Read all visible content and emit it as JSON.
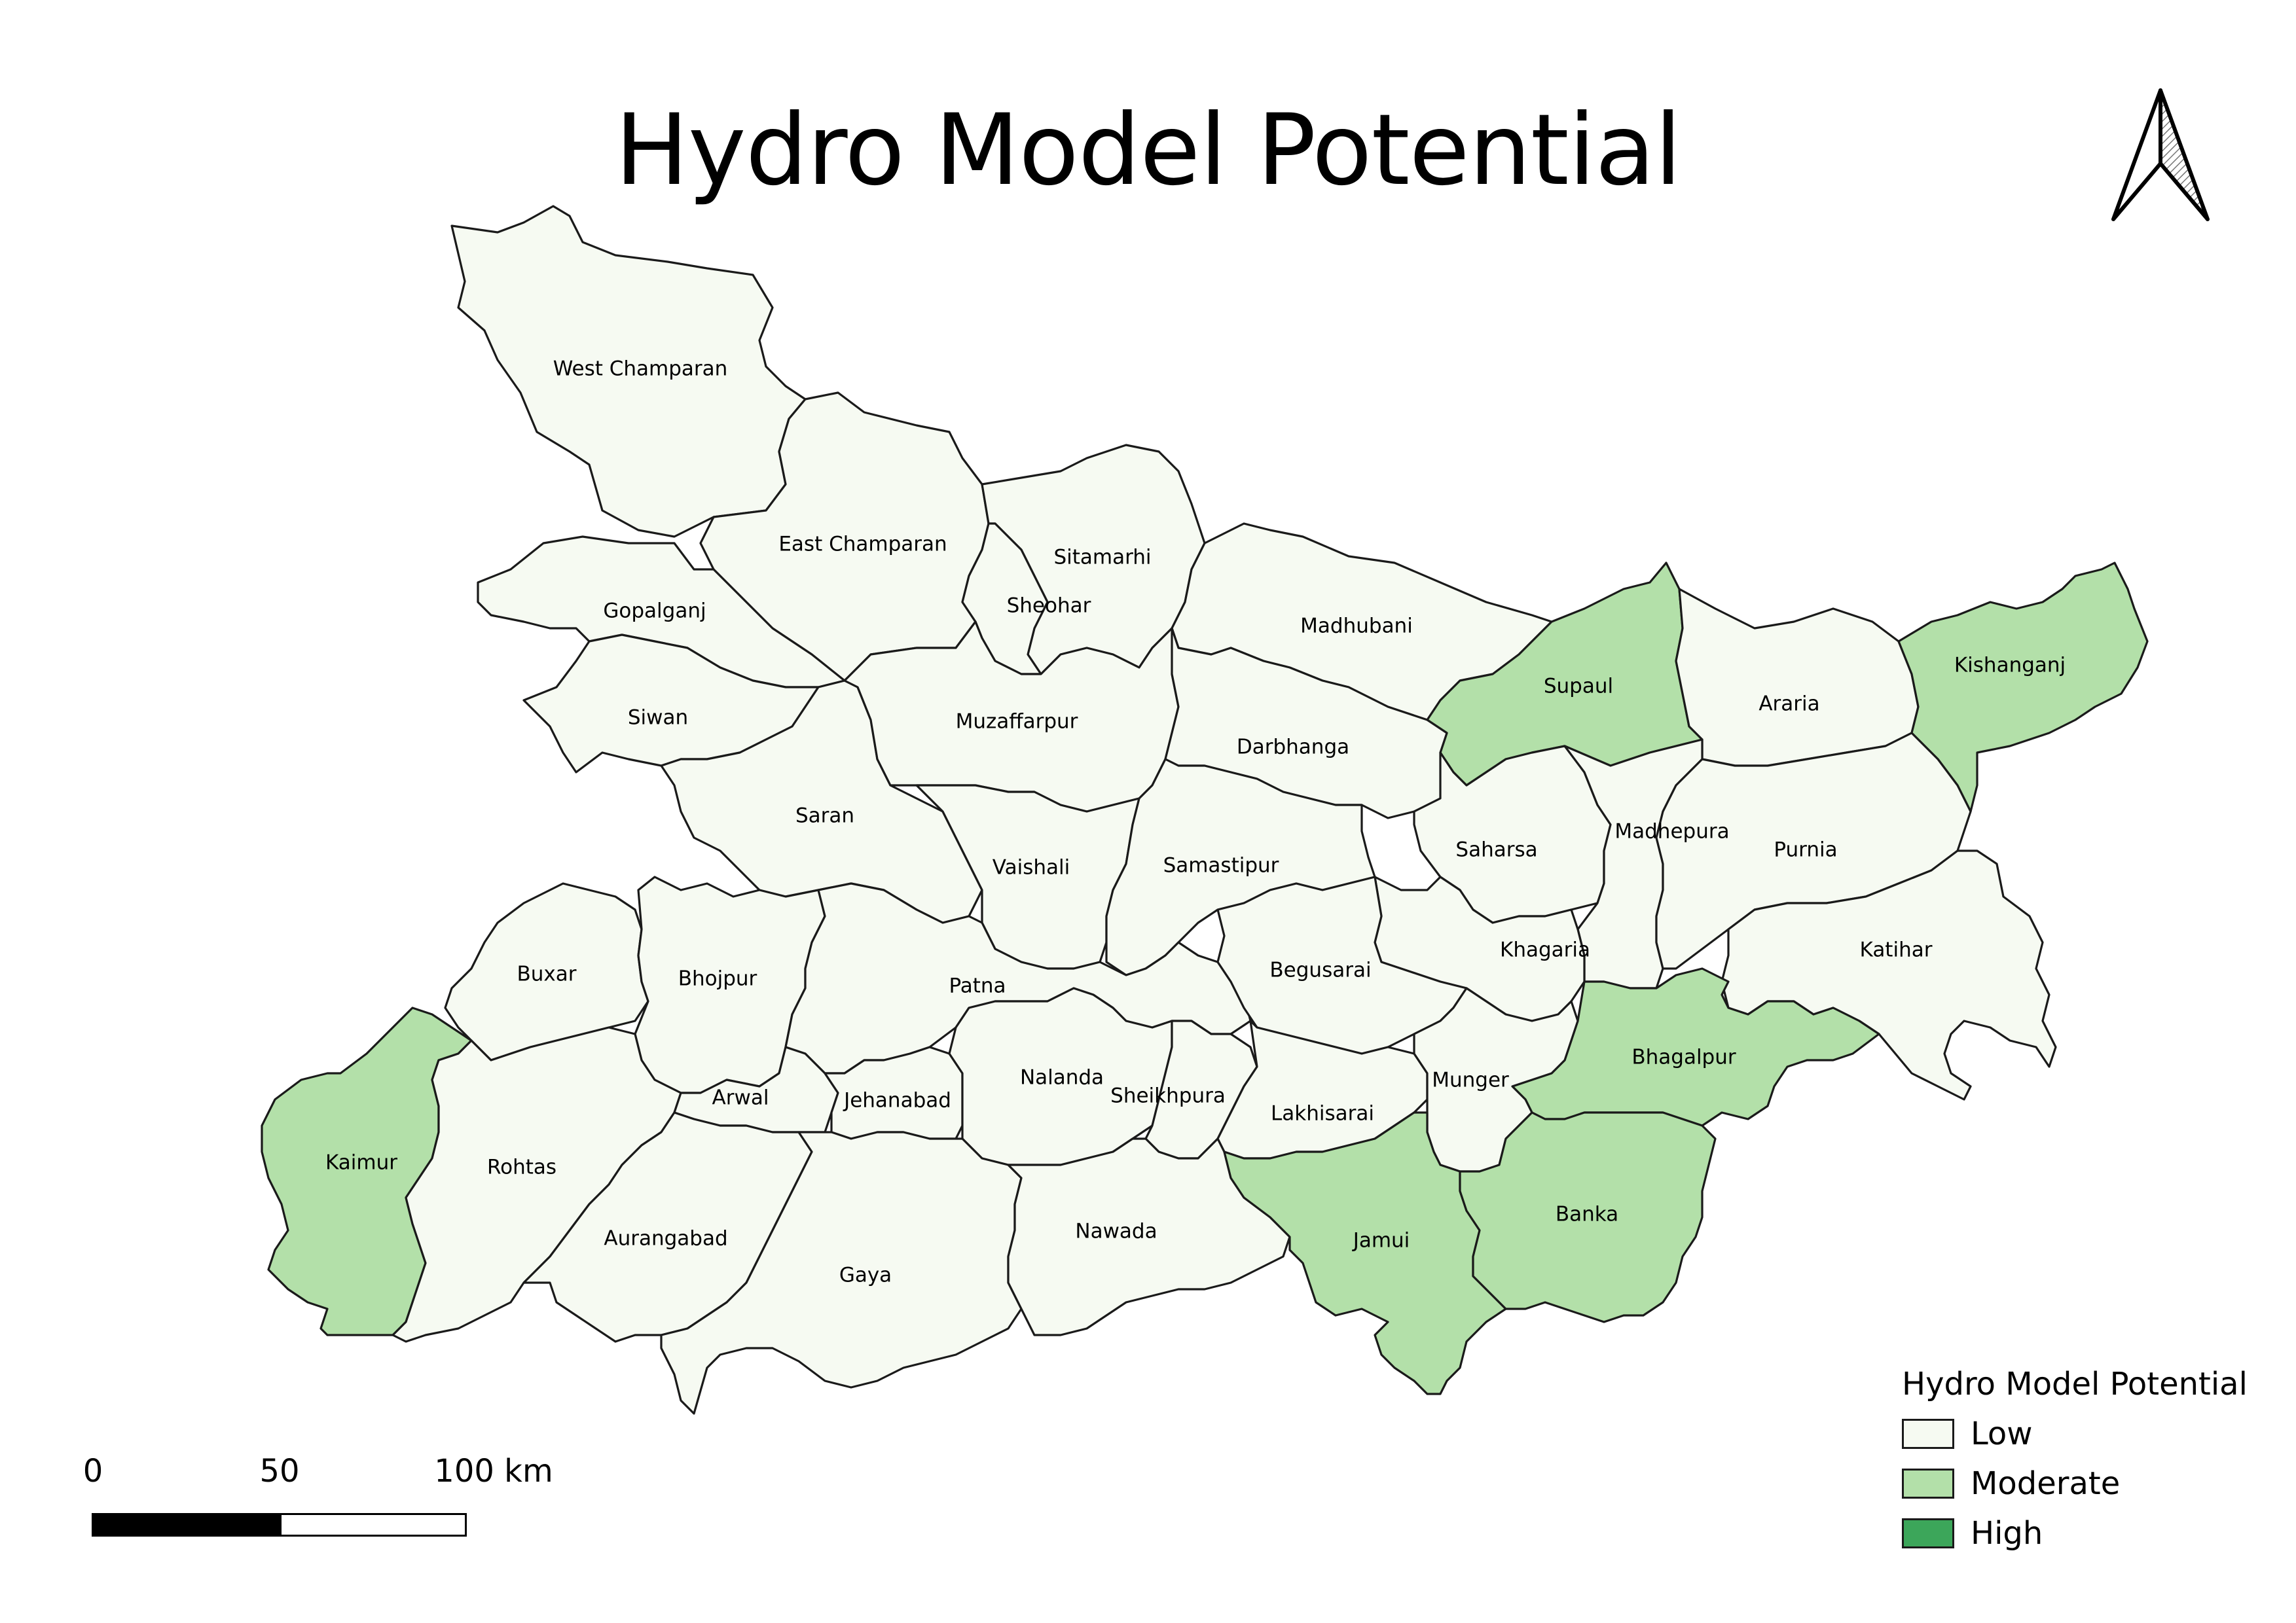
{
  "title": "Hydro Model Potential",
  "colors": {
    "low": "#f6faf2",
    "moderate": "#b3e0a9",
    "high": "#3ca65a",
    "border": "#1a1a1a"
  },
  "districts": [
    {
      "id": "west-champaran",
      "name": "West Champaran",
      "class": "low"
    },
    {
      "id": "east-champaran",
      "name": "East Champaran",
      "class": "low"
    },
    {
      "id": "sitamarhi",
      "name": "Sitamarhi",
      "class": "low"
    },
    {
      "id": "sheohar",
      "name": "Sheohar",
      "class": "low"
    },
    {
      "id": "madhubani",
      "name": "Madhubani",
      "class": "low"
    },
    {
      "id": "supaul",
      "name": "Supaul",
      "class": "moderate"
    },
    {
      "id": "araria",
      "name": "Araria",
      "class": "low"
    },
    {
      "id": "kishanganj",
      "name": "Kishanganj",
      "class": "moderate"
    },
    {
      "id": "gopalganj",
      "name": "Gopalganj",
      "class": "low"
    },
    {
      "id": "siwan",
      "name": "Siwan",
      "class": "low"
    },
    {
      "id": "saran",
      "name": "Saran",
      "class": "low"
    },
    {
      "id": "muzaffarpur",
      "name": "Muzaffarpur",
      "class": "low"
    },
    {
      "id": "darbhanga",
      "name": "Darbhanga",
      "class": "low"
    },
    {
      "id": "saharsa",
      "name": "Saharsa",
      "class": "low"
    },
    {
      "id": "madhepura",
      "name": "Madhepura",
      "class": "low"
    },
    {
      "id": "purnia",
      "name": "Purnia",
      "class": "low"
    },
    {
      "id": "vaishali",
      "name": "Vaishali",
      "class": "low"
    },
    {
      "id": "samastipur",
      "name": "Samastipur",
      "class": "low"
    },
    {
      "id": "khagaria",
      "name": "Khagaria",
      "class": "low"
    },
    {
      "id": "katihar",
      "name": "Katihar",
      "class": "low"
    },
    {
      "id": "buxar",
      "name": "Buxar",
      "class": "low"
    },
    {
      "id": "bhojpur",
      "name": "Bhojpur",
      "class": "low"
    },
    {
      "id": "patna",
      "name": "Patna",
      "class": "low"
    },
    {
      "id": "begusarai",
      "name": "Begusarai",
      "class": "low"
    },
    {
      "id": "bhagalpur",
      "name": "Bhagalpur",
      "class": "moderate"
    },
    {
      "id": "kaimur",
      "name": "Kaimur",
      "class": "moderate"
    },
    {
      "id": "rohtas",
      "name": "Rohtas",
      "class": "low"
    },
    {
      "id": "arwal",
      "name": "Arwal",
      "class": "low"
    },
    {
      "id": "jehanabad",
      "name": "Jehanabad",
      "class": "low"
    },
    {
      "id": "nalanda",
      "name": "Nalanda",
      "class": "low"
    },
    {
      "id": "sheikhpura",
      "name": "Sheikhpura",
      "class": "low"
    },
    {
      "id": "lakhisarai",
      "name": "Lakhisarai",
      "class": "low"
    },
    {
      "id": "munger",
      "name": "Munger",
      "class": "low"
    },
    {
      "id": "aurangabad",
      "name": "Aurangabad",
      "class": "low"
    },
    {
      "id": "gaya",
      "name": "Gaya",
      "class": "low"
    },
    {
      "id": "nawada",
      "name": "Nawada",
      "class": "low"
    },
    {
      "id": "jamui",
      "name": "Jamui",
      "class": "moderate"
    },
    {
      "id": "banka",
      "name": "Banka",
      "class": "moderate"
    }
  ],
  "legend": {
    "title": "Hydro Model Potential",
    "items": [
      {
        "label": "Low",
        "class": "low"
      },
      {
        "label": "Moderate",
        "class": "moderate"
      },
      {
        "label": "High",
        "class": "high"
      }
    ]
  },
  "scale_bar": {
    "labels": [
      "0",
      "50",
      "100 km"
    ]
  },
  "north_arrow": {
    "icon": "north-arrow-icon"
  }
}
